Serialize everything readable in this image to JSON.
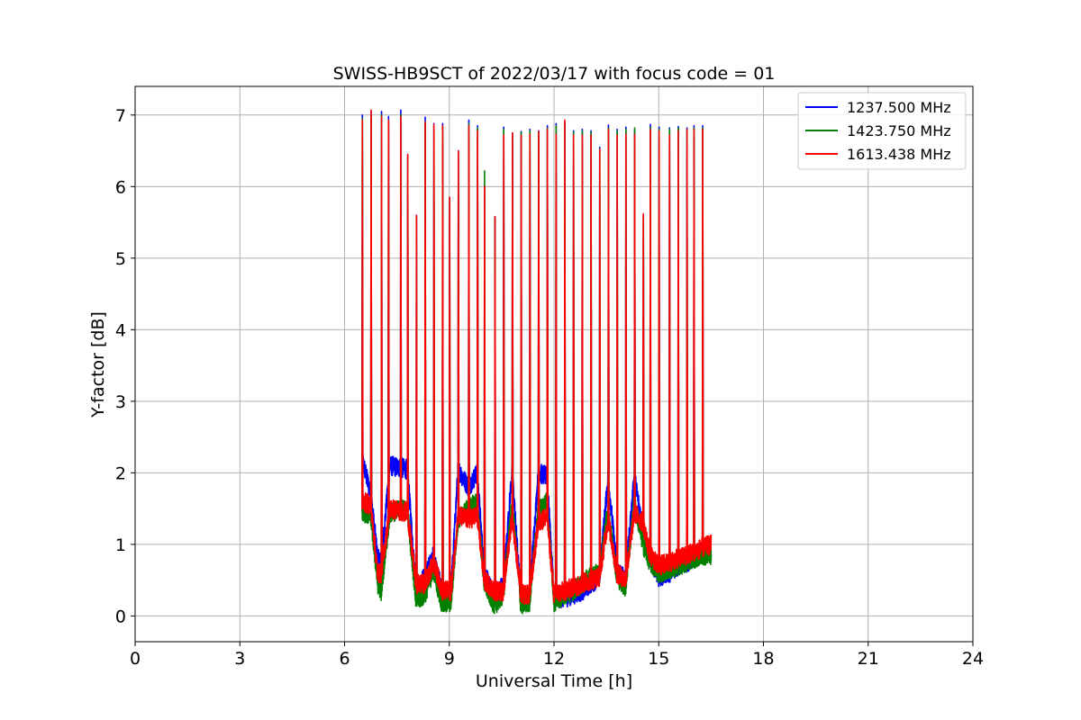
{
  "chart_data": {
    "type": "line",
    "title": "SWISS-HB9SCT of 2022/03/17 with focus code = 01",
    "xlabel": "Universal Time [h]",
    "ylabel": "Y-factor [dB]",
    "xlim": [
      0,
      24
    ],
    "ylim": [
      -0.36,
      7.4
    ],
    "xticks": [
      0,
      3,
      6,
      9,
      12,
      15,
      18,
      21,
      24
    ],
    "xtick_labels": [
      "0",
      "3",
      "6",
      "9",
      "12",
      "15",
      "18",
      "21",
      "24"
    ],
    "yticks": [
      0,
      1,
      2,
      3,
      4,
      5,
      6,
      7
    ],
    "ytick_labels": [
      "0",
      "1",
      "2",
      "3",
      "4",
      "5",
      "6",
      "7"
    ],
    "grid": true,
    "legend_position": "top-right",
    "spike_times": [
      6.5,
      6.75,
      7.05,
      7.25,
      7.6,
      7.8,
      8.05,
      8.3,
      8.55,
      8.8,
      9.0,
      9.25,
      9.55,
      9.8,
      10.0,
      10.3,
      10.55,
      10.8,
      11.05,
      11.3,
      11.55,
      11.8,
      12.05,
      12.3,
      12.55,
      12.8,
      13.05,
      13.3,
      13.55,
      13.8,
      14.05,
      14.3,
      14.55,
      14.75,
      15.0,
      15.3,
      15.55,
      15.8,
      16.0,
      16.25
    ],
    "data_end": 16.5,
    "series": [
      {
        "name": "1237.500 MHz",
        "color": "#0000ff",
        "peaks": [
          7.0,
          7.05,
          7.05,
          6.98,
          7.07,
          6.45,
          5.6,
          6.97,
          6.88,
          6.88,
          5.85,
          6.5,
          6.93,
          6.85,
          6.02,
          5.58,
          6.83,
          6.75,
          6.77,
          6.8,
          6.78,
          6.85,
          6.88,
          6.9,
          6.78,
          6.8,
          6.78,
          6.55,
          6.86,
          6.8,
          6.83,
          6.78,
          5.6,
          6.87,
          6.83,
          6.82,
          6.84,
          6.82,
          6.85,
          6.85
        ],
        "baseline": [
          [
            6.5,
            2.2
          ],
          [
            6.75,
            1.7
          ],
          [
            6.95,
            0.8
          ],
          [
            7.05,
            0.75
          ],
          [
            7.3,
            2.1
          ],
          [
            7.8,
            2.05
          ],
          [
            8.05,
            0.35
          ],
          [
            8.3,
            0.55
          ],
          [
            8.55,
            0.85
          ],
          [
            8.8,
            0.3
          ],
          [
            9.05,
            0.35
          ],
          [
            9.25,
            2.05
          ],
          [
            9.55,
            1.8
          ],
          [
            9.8,
            2.0
          ],
          [
            10.0,
            0.6
          ],
          [
            10.3,
            0.25
          ],
          [
            10.55,
            0.45
          ],
          [
            10.8,
            2.05
          ],
          [
            11.05,
            0.2
          ],
          [
            11.3,
            0.3
          ],
          [
            11.55,
            2.0
          ],
          [
            11.8,
            1.95
          ],
          [
            12.0,
            0.25
          ],
          [
            12.3,
            0.25
          ],
          [
            12.55,
            0.3
          ],
          [
            12.8,
            0.35
          ],
          [
            13.05,
            0.45
          ],
          [
            13.3,
            0.55
          ],
          [
            13.55,
            1.95
          ],
          [
            13.8,
            0.65
          ],
          [
            14.05,
            0.5
          ],
          [
            14.3,
            1.95
          ],
          [
            14.55,
            1.2
          ],
          [
            14.75,
            0.8
          ],
          [
            15.0,
            0.55
          ],
          [
            15.3,
            0.6
          ],
          [
            15.55,
            0.7
          ],
          [
            15.8,
            0.75
          ],
          [
            16.0,
            0.8
          ],
          [
            16.25,
            0.9
          ],
          [
            16.5,
            0.95
          ]
        ]
      },
      {
        "name": "1423.750 MHz",
        "color": "#008000",
        "peaks": [
          6.95,
          7.0,
          7.0,
          6.92,
          7.0,
          6.42,
          5.58,
          6.9,
          6.85,
          6.85,
          5.82,
          6.48,
          6.88,
          6.82,
          6.22,
          5.55,
          6.8,
          6.72,
          6.76,
          6.78,
          6.76,
          6.82,
          6.85,
          6.88,
          6.76,
          6.78,
          6.76,
          6.53,
          6.82,
          6.78,
          6.8,
          6.82,
          5.58,
          6.83,
          6.8,
          6.8,
          6.82,
          6.8,
          6.82,
          6.82
        ],
        "baseline": [
          [
            6.5,
            1.45
          ],
          [
            6.75,
            1.4
          ],
          [
            6.95,
            0.45
          ],
          [
            7.05,
            0.35
          ],
          [
            7.3,
            1.45
          ],
          [
            7.8,
            1.5
          ],
          [
            8.05,
            0.2
          ],
          [
            8.3,
            0.3
          ],
          [
            8.55,
            0.65
          ],
          [
            8.8,
            0.15
          ],
          [
            9.05,
            0.2
          ],
          [
            9.25,
            1.35
          ],
          [
            9.55,
            1.5
          ],
          [
            9.8,
            1.6
          ],
          [
            10.0,
            0.45
          ],
          [
            10.3,
            0.15
          ],
          [
            10.55,
            0.3
          ],
          [
            10.8,
            1.6
          ],
          [
            11.05,
            0.15
          ],
          [
            11.3,
            0.2
          ],
          [
            11.55,
            1.5
          ],
          [
            11.8,
            1.6
          ],
          [
            12.0,
            0.2
          ],
          [
            12.3,
            0.3
          ],
          [
            12.55,
            0.35
          ],
          [
            12.8,
            0.45
          ],
          [
            13.05,
            0.55
          ],
          [
            13.3,
            0.6
          ],
          [
            13.55,
            1.5
          ],
          [
            13.8,
            0.55
          ],
          [
            14.05,
            0.4
          ],
          [
            14.3,
            1.6
          ],
          [
            14.55,
            1.0
          ],
          [
            14.75,
            0.75
          ],
          [
            15.0,
            0.6
          ],
          [
            15.3,
            0.65
          ],
          [
            15.55,
            0.7
          ],
          [
            15.8,
            0.75
          ],
          [
            16.0,
            0.8
          ],
          [
            16.25,
            0.85
          ],
          [
            16.5,
            0.85
          ]
        ]
      },
      {
        "name": "1613.438 MHz",
        "color": "#ff0000",
        "peaks": [
          6.93,
          7.07,
          6.98,
          6.93,
          6.98,
          6.45,
          5.6,
          6.9,
          6.87,
          6.85,
          5.85,
          6.5,
          6.85,
          6.78,
          6.0,
          5.58,
          6.72,
          6.75,
          6.72,
          6.73,
          6.77,
          6.8,
          6.73,
          6.93,
          6.72,
          6.72,
          6.72,
          6.52,
          6.8,
          6.72,
          6.73,
          6.73,
          5.62,
          6.8,
          6.78,
          6.72,
          6.78,
          6.8,
          6.8,
          6.8
        ],
        "baseline": [
          [
            6.5,
            1.6
          ],
          [
            6.75,
            1.55
          ],
          [
            6.95,
            0.6
          ],
          [
            7.05,
            0.6
          ],
          [
            7.3,
            1.5
          ],
          [
            7.8,
            1.45
          ],
          [
            8.05,
            0.45
          ],
          [
            8.3,
            0.45
          ],
          [
            8.55,
            0.75
          ],
          [
            8.8,
            0.35
          ],
          [
            9.05,
            0.35
          ],
          [
            9.25,
            1.4
          ],
          [
            9.55,
            1.35
          ],
          [
            9.8,
            1.4
          ],
          [
            10.0,
            0.5
          ],
          [
            10.3,
            0.35
          ],
          [
            10.55,
            0.35
          ],
          [
            10.8,
            1.4
          ],
          [
            11.05,
            0.3
          ],
          [
            11.3,
            0.3
          ],
          [
            11.55,
            1.3
          ],
          [
            11.8,
            1.4
          ],
          [
            12.0,
            0.3
          ],
          [
            12.3,
            0.35
          ],
          [
            12.55,
            0.4
          ],
          [
            12.8,
            0.45
          ],
          [
            13.05,
            0.5
          ],
          [
            13.3,
            0.55
          ],
          [
            13.55,
            1.35
          ],
          [
            13.8,
            0.6
          ],
          [
            14.05,
            0.5
          ],
          [
            14.3,
            1.45
          ],
          [
            14.55,
            1.3
          ],
          [
            14.75,
            0.85
          ],
          [
            15.0,
            0.7
          ],
          [
            15.3,
            0.75
          ],
          [
            15.55,
            0.8
          ],
          [
            15.8,
            0.85
          ],
          [
            16.0,
            0.9
          ],
          [
            16.25,
            0.95
          ],
          [
            16.5,
            1.0
          ]
        ]
      }
    ]
  }
}
